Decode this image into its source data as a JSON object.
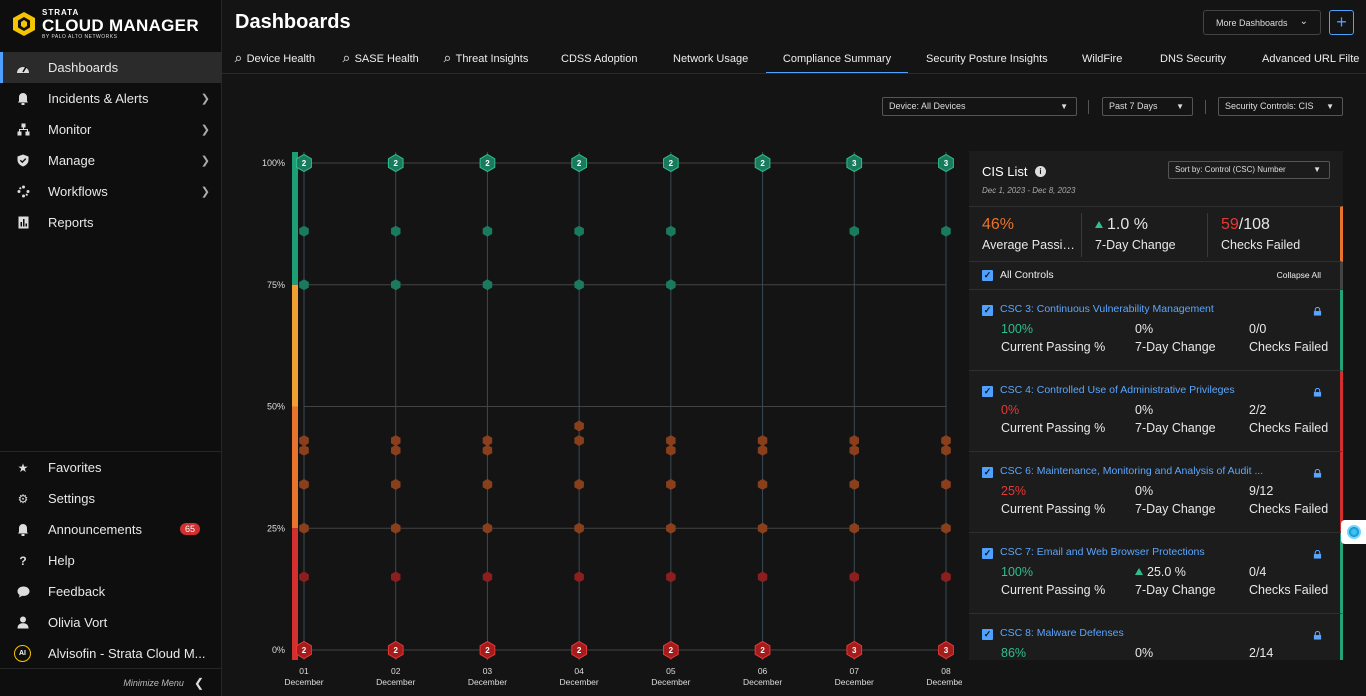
{
  "brand": {
    "line1": "STRATA",
    "line2": "CLOUD MANAGER",
    "line3": "BY PALO ALTO NETWORKS"
  },
  "nav": {
    "items": [
      {
        "label": "Dashboards",
        "icon": "dashboard-icon",
        "active": true
      },
      {
        "label": "Incidents & Alerts",
        "icon": "bell-icon"
      },
      {
        "label": "Monitor",
        "icon": "monitor-icon"
      },
      {
        "label": "Manage",
        "icon": "shield-check-icon"
      },
      {
        "label": "Workflows",
        "icon": "workflow-icon"
      },
      {
        "label": "Reports",
        "icon": "report-icon"
      }
    ],
    "bottom": [
      {
        "label": "Favorites",
        "icon": "star-icon"
      },
      {
        "label": "Settings",
        "icon": "gear-icon"
      },
      {
        "label": "Announcements",
        "icon": "bell-icon",
        "badge": "65"
      },
      {
        "label": "Help",
        "icon": "help-icon"
      },
      {
        "label": "Feedback",
        "icon": "chat-icon"
      },
      {
        "label": "Olivia Vort",
        "icon": "user-icon"
      },
      {
        "label": "Alvisofin - Strata Cloud M...",
        "icon": "tenant-icon",
        "tenant_initials": "AI"
      }
    ],
    "minimize": "Minimize Menu"
  },
  "header": {
    "title": "Dashboards",
    "more_dashboards": "More Dashboards"
  },
  "tabs": [
    {
      "label": "Device Health",
      "pinned": true
    },
    {
      "label": "SASE Health",
      "pinned": true
    },
    {
      "label": "Threat Insights",
      "pinned": true
    },
    {
      "label": "CDSS Adoption"
    },
    {
      "label": "Network Usage"
    },
    {
      "label": "Compliance Summary",
      "active": true
    },
    {
      "label": "Security Posture Insights"
    },
    {
      "label": "WildFire"
    },
    {
      "label": "DNS Security"
    },
    {
      "label": "Advanced URL Filte"
    }
  ],
  "filters": {
    "device": "Device: All Devices",
    "period": "Past 7 Days",
    "controls": "Security Controls: CIS"
  },
  "chart_data": {
    "type": "scatter",
    "x": [
      "01",
      "02",
      "03",
      "04",
      "05",
      "06",
      "07",
      "08"
    ],
    "x_sublabel": "December",
    "y_ticks": [
      "100%",
      "75%",
      "50%",
      "25%",
      "0%"
    ],
    "ylim": [
      0,
      100
    ],
    "band_colors": {
      "high": "#1e9e74",
      "mid_high": "#f0a030",
      "mid_low": "#e8732c",
      "low": "#d32f2f"
    },
    "top_counts": [
      2,
      2,
      2,
      2,
      2,
      2,
      3,
      3
    ],
    "bottom_counts": [
      2,
      2,
      2,
      2,
      2,
      2,
      3,
      3
    ],
    "series": [
      {
        "values_by_x": [
          [
            86,
            75
          ],
          [
            86,
            75
          ],
          [
            86,
            75
          ],
          [
            86,
            75
          ],
          [
            86,
            75
          ],
          [],
          [
            86
          ],
          [
            86
          ]
        ]
      },
      {
        "values_by_x": [
          [
            43,
            41,
            34,
            25,
            15
          ],
          [
            43,
            41,
            34,
            25,
            15
          ],
          [
            43,
            41,
            34,
            25,
            15
          ],
          [
            46,
            43,
            34,
            25,
            15
          ],
          [
            43,
            41,
            34,
            25,
            15
          ],
          [
            43,
            41,
            34,
            25,
            15
          ],
          [
            43,
            41,
            34,
            25,
            15
          ],
          [
            43,
            41,
            34,
            25,
            15
          ]
        ]
      }
    ]
  },
  "cis": {
    "title": "CIS List",
    "dates": "Dec 1, 2023 - Dec 8, 2023",
    "sort": "Sort by: Control (CSC) Number",
    "summary": {
      "avg_value": "46%",
      "avg_label": "Average Passing %",
      "change_value": "1.0 %",
      "change_label": "7-Day Change",
      "failed_value": "59",
      "failed_total": "/108",
      "failed_label": "Checks Failed"
    },
    "all_controls": "All Controls",
    "collapse_all": "Collapse All",
    "controls": [
      {
        "title": "CSC 3: Continuous Vulnerability Management",
        "passing": "100%",
        "status": "pass",
        "change": "0%",
        "up": false,
        "checks": "0/0"
      },
      {
        "title": "CSC 4: Controlled Use of Administrative Privileges",
        "passing": "0%",
        "status": "fail",
        "change": "0%",
        "up": false,
        "checks": "2/2"
      },
      {
        "title": "CSC 6: Maintenance, Monitoring and Analysis of Audit ...",
        "passing": "25%",
        "status": "fail",
        "change": "0%",
        "up": false,
        "checks": "9/12"
      },
      {
        "title": "CSC 7: Email and Web Browser Protections",
        "passing": "100%",
        "status": "pass",
        "change": "25.0 %",
        "up": true,
        "checks": "0/4"
      },
      {
        "title": "CSC 8: Malware Defenses",
        "passing": "86%",
        "status": "pass",
        "change": "0%",
        "up": false,
        "checks": "2/14"
      }
    ],
    "labels": {
      "passing": "Current Passing %",
      "change": "7-Day Change",
      "checks": "Checks Failed"
    }
  }
}
